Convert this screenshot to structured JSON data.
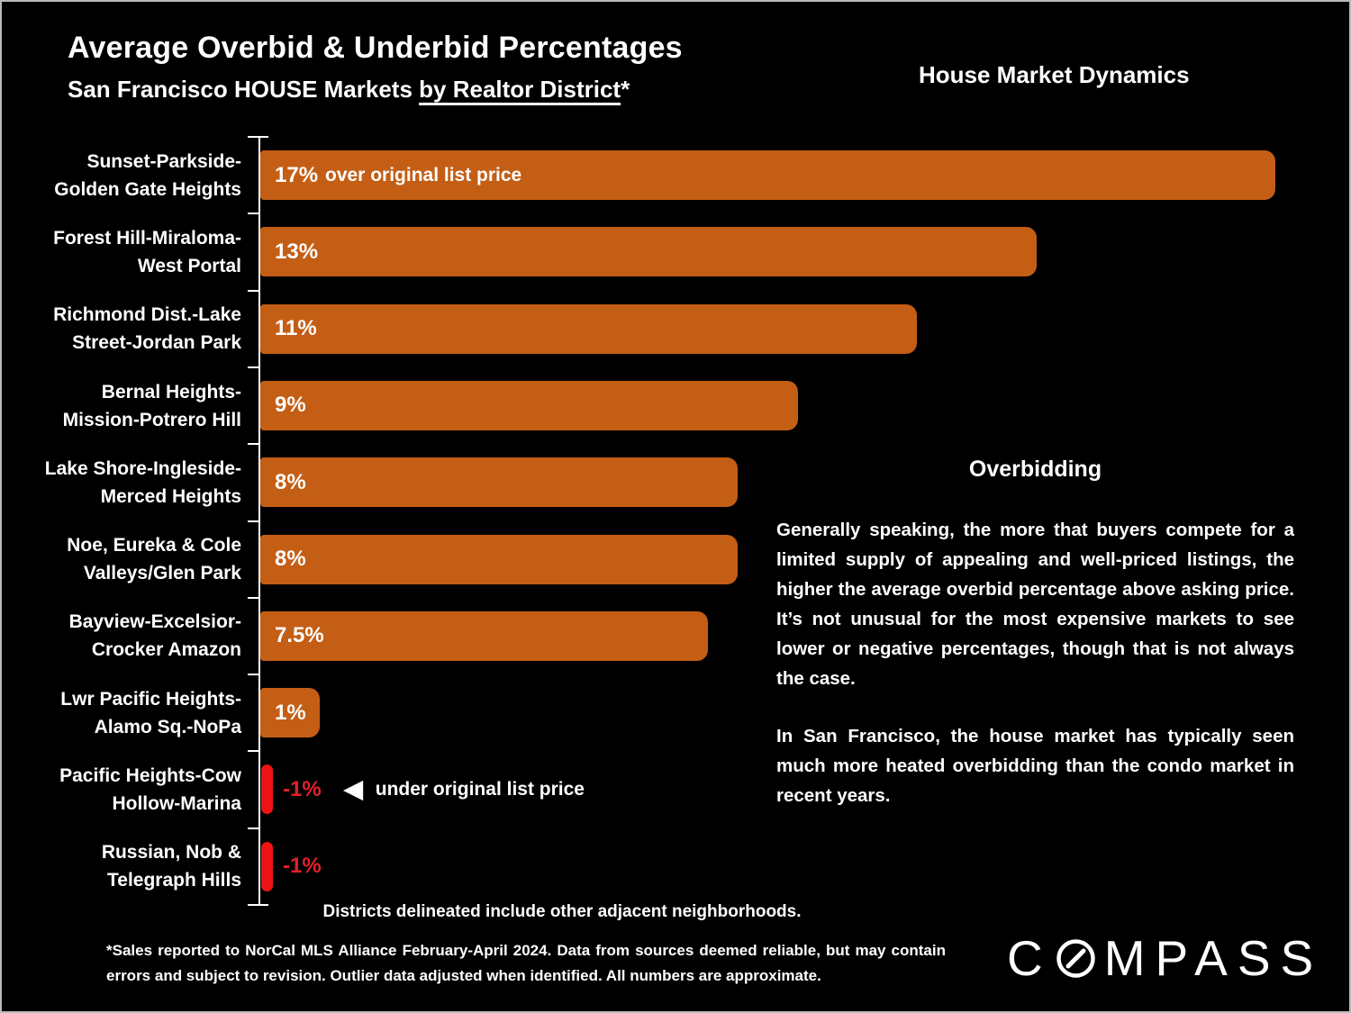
{
  "header": {
    "title": "Average Overbid & Underbid Percentages",
    "subtitle_prefix": "San Francisco HOUSE Markets ",
    "subtitle_underline": "by Realtor District",
    "subtitle_suffix": "*",
    "right_title": "House Market Dynamics"
  },
  "chart_data": {
    "type": "bar",
    "orientation": "horizontal",
    "xlim": [
      0,
      17
    ],
    "unit": "%",
    "categories": [
      [
        "Sunset-Parkside-",
        "Golden Gate Heights"
      ],
      [
        "Forest Hill-Miraloma-",
        "West Portal"
      ],
      [
        "Richmond Dist.-Lake",
        "Street-Jordan Park"
      ],
      [
        "Bernal Heights-",
        "Mission-Potrero Hill"
      ],
      [
        "Lake Shore-Ingleside-",
        "Merced Heights"
      ],
      [
        "Noe, Eureka & Cole",
        "Valleys/Glen Park"
      ],
      [
        "Bayview-Excelsior-",
        "Crocker Amazon"
      ],
      [
        "Lwr Pacific Heights-",
        "Alamo Sq.-NoPa"
      ],
      [
        "Pacific Heights-Cow",
        "Hollow-Marina"
      ],
      [
        "Russian, Nob &",
        "Telegraph Hills"
      ]
    ],
    "values": [
      17,
      13,
      11,
      9,
      8,
      8,
      7.5,
      1,
      -1,
      -1
    ],
    "bar_labels": [
      "17%",
      "13%",
      "11%",
      "9%",
      "8%",
      "8%",
      "7.5%",
      "1%",
      "-1%",
      "-1%"
    ],
    "annotations": [
      {
        "row": 0,
        "arrow": "",
        "text": "over original list price"
      },
      {
        "row": 8,
        "arrow": "◀",
        "text": "under original list price"
      }
    ],
    "colors": {
      "positive_bar": "#C45E15",
      "negative_bar": "#ED1414",
      "negative_label": "#E02228",
      "axis": "#FFFFFF"
    }
  },
  "commentary": {
    "heading": "Overbidding",
    "paragraph1": "Generally speaking, the more that buyers compete for a limited supply of appealing and well-priced listings, the higher the average overbid percentage above asking price. It’s not unusual for the most expensive markets to see lower or negative percentages, though that is not always the case.",
    "paragraph2": "In San Francisco, the house market has typically seen much more heated overbidding than the condo market in recent years."
  },
  "footer": {
    "districts_note": "Districts delineated include other adjacent neighborhoods.",
    "footnote": "*Sales reported to NorCal MLS Alliance February-April 2024. Data from sources deemed reliable, but may contain errors and subject to revision. Outlier data adjusted when identified. All numbers are approximate.",
    "brand_prefix": "C",
    "brand_suffix": "MPASS"
  }
}
